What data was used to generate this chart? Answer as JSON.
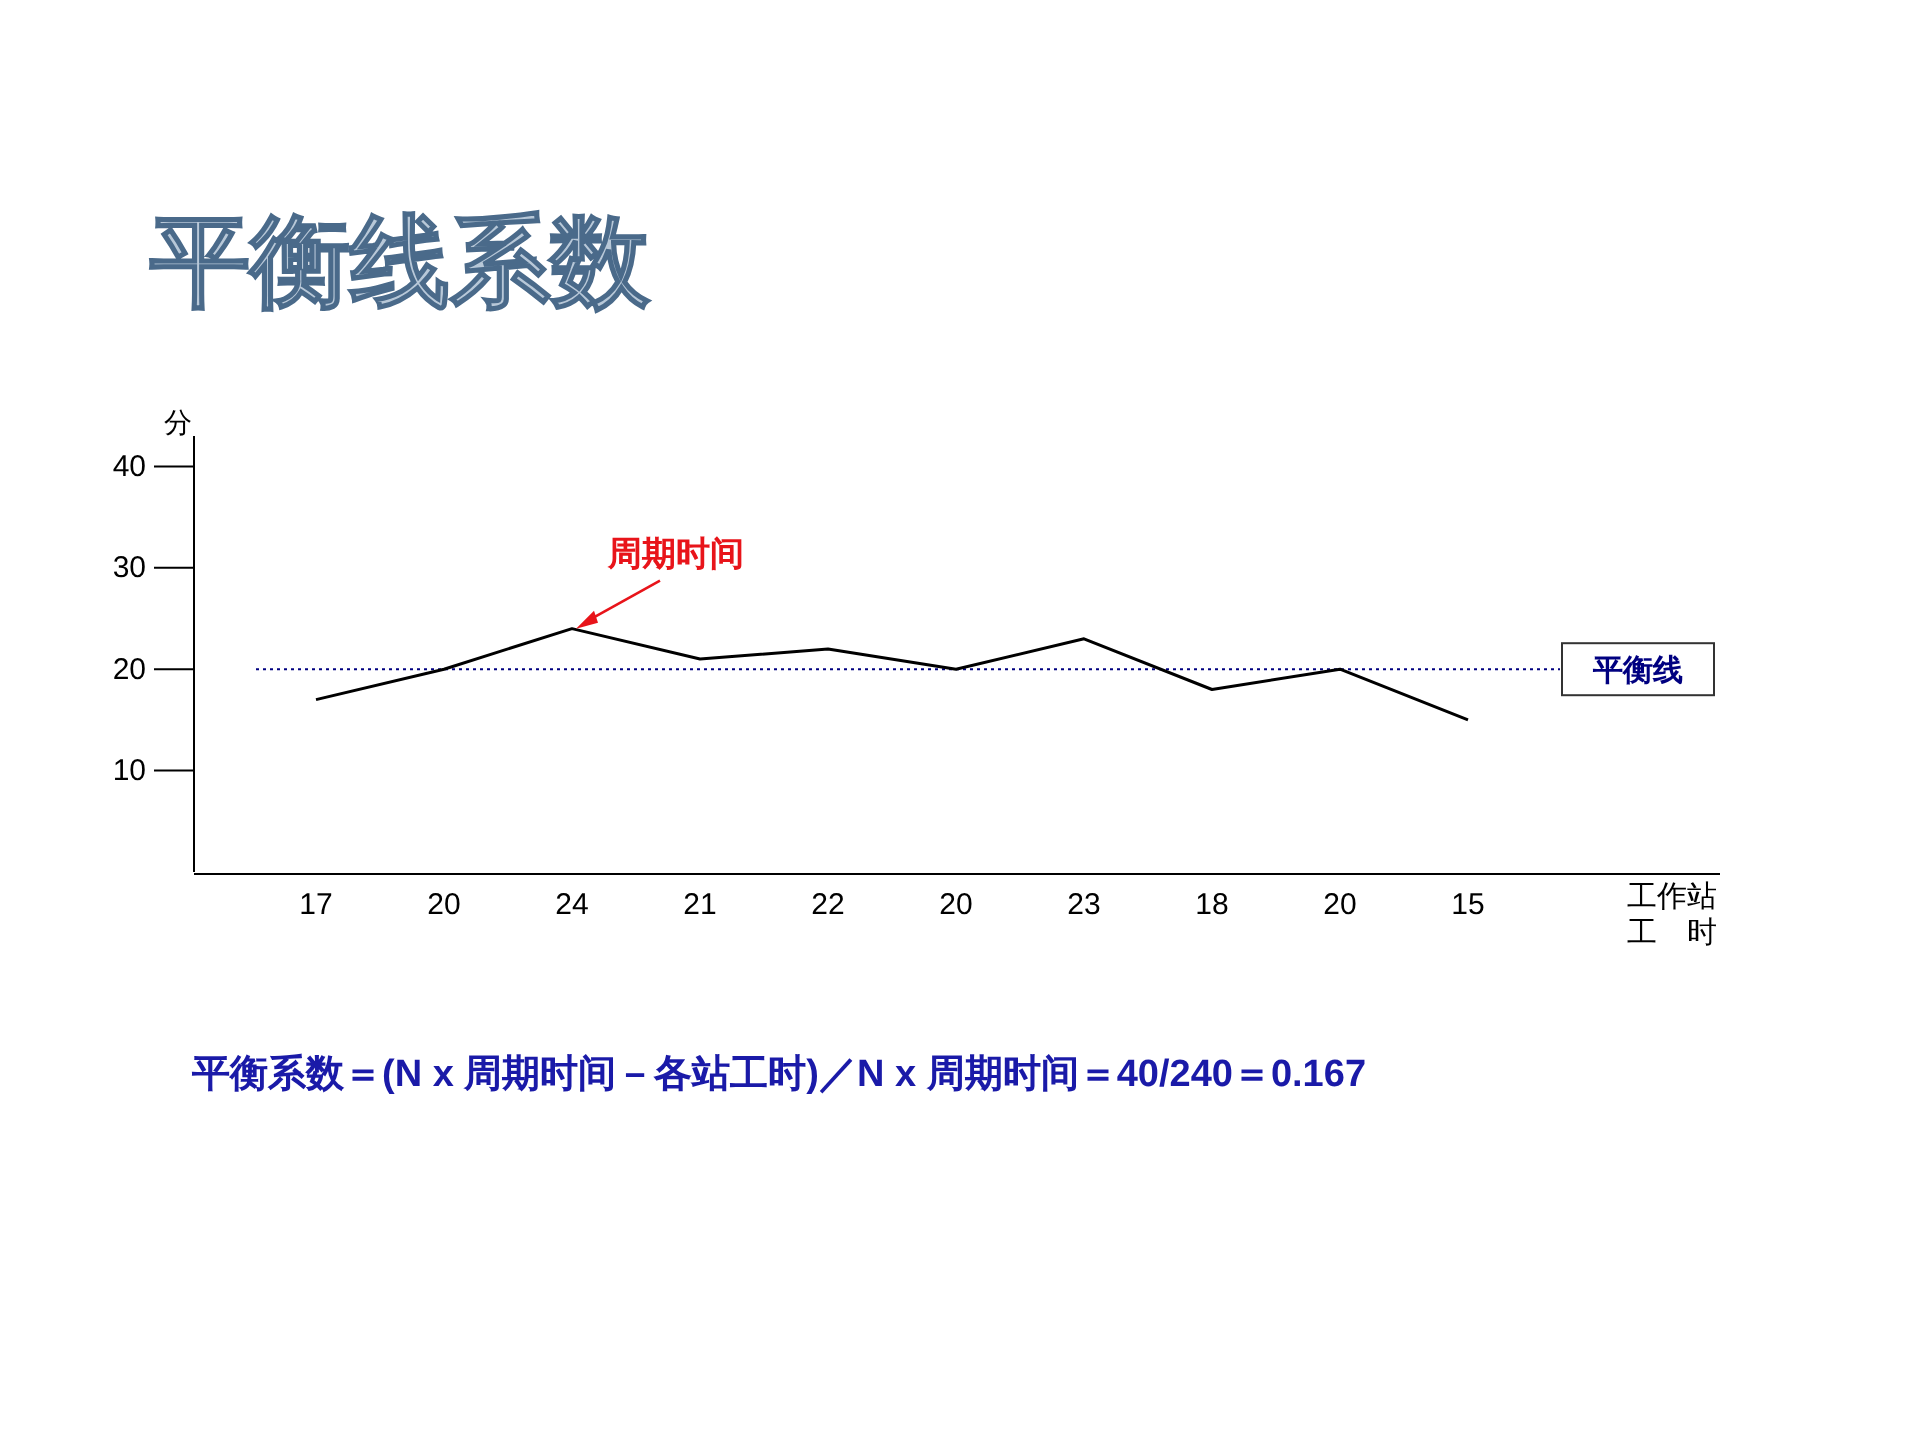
{
  "chart_data": {
    "type": "line",
    "title": "平衡线系数",
    "ylabel": "分",
    "xlabel": "工作站工　时",
    "categories": [
      "17",
      "20",
      "24",
      "21",
      "22",
      "20",
      "23",
      "18",
      "20",
      "15"
    ],
    "series": [
      {
        "color": "#000000",
        "values": [
          17,
          20,
          24,
          21,
          22,
          20,
          23,
          18,
          20,
          15
        ]
      }
    ],
    "ylim": [
      0,
      43
    ],
    "yticks": [
      10,
      20,
      30,
      40
    ],
    "ref_lines": [
      {
        "axis": "y",
        "value": 20,
        "label": "平衡线",
        "color": "#000080",
        "line_style": "dotted"
      }
    ],
    "annotations": [
      {
        "text": "周期时间",
        "x": "24",
        "y": 24
      },
      "平衡系数＝(N x 周期时间－各站工时)／N x 周期时间＝40/240＝0.167"
    ],
    "marker": "none",
    "line_style": "solid"
  }
}
